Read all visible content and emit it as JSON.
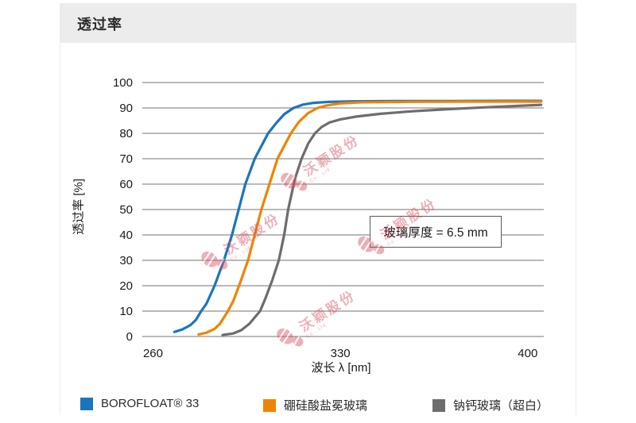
{
  "header": {
    "title": "透过率"
  },
  "chart_data": {
    "type": "line",
    "title": "透过率",
    "xlabel": "波长 λ [nm]",
    "ylabel": "透过率 [%]",
    "xlim": [
      256,
      406
    ],
    "xticks": [
      260,
      330,
      400
    ],
    "ylim": [
      0,
      100
    ],
    "yticks": [
      0,
      10,
      20,
      30,
      40,
      50,
      60,
      70,
      80,
      90,
      100
    ],
    "grid": "horizontal",
    "gridline_color": "#8f8f8f",
    "legend_position": "bottom",
    "annotation": "玻璃厚度 = 6.5 mm",
    "series": [
      {
        "name": "BOROFLOAT® 33",
        "color": "#1b75bc",
        "points": [
          [
            268,
            1.8
          ],
          [
            271,
            2.8
          ],
          [
            274,
            4.5
          ],
          [
            276,
            6.5
          ],
          [
            278,
            10
          ],
          [
            280,
            13
          ],
          [
            283,
            20
          ],
          [
            286.5,
            30
          ],
          [
            289.5,
            40
          ],
          [
            292,
            50
          ],
          [
            294.5,
            60
          ],
          [
            298,
            70
          ],
          [
            300.5,
            75
          ],
          [
            303,
            80
          ],
          [
            306,
            84
          ],
          [
            309,
            87.5
          ],
          [
            312.5,
            90
          ],
          [
            316,
            91.3
          ],
          [
            320,
            92
          ],
          [
            326,
            92.4
          ],
          [
            335,
            92.6
          ],
          [
            350,
            92.7
          ],
          [
            370,
            92.7
          ],
          [
            390,
            92.8
          ],
          [
            405,
            92.8
          ]
        ]
      },
      {
        "name": "硼硅酸盐冕玻璃",
        "color": "#f08300",
        "points": [
          [
            277,
            0.8
          ],
          [
            280,
            1.5
          ],
          [
            283,
            3
          ],
          [
            285,
            5
          ],
          [
            288,
            10
          ],
          [
            290,
            14
          ],
          [
            292.5,
            21
          ],
          [
            295.5,
            30
          ],
          [
            298,
            40
          ],
          [
            300.5,
            50
          ],
          [
            303.5,
            60
          ],
          [
            306.5,
            70
          ],
          [
            309,
            75
          ],
          [
            311.5,
            80
          ],
          [
            314.5,
            84.5
          ],
          [
            318,
            88
          ],
          [
            321.5,
            90
          ],
          [
            325,
            91
          ],
          [
            330,
            91.8
          ],
          [
            338,
            92.2
          ],
          [
            355,
            92.4
          ],
          [
            375,
            92.5
          ],
          [
            405,
            92.5
          ]
        ]
      },
      {
        "name": "钠钙玻璃（超白）",
        "color": "#6d6d6d",
        "points": [
          [
            286,
            0.6
          ],
          [
            290,
            1.2
          ],
          [
            293,
            2.5
          ],
          [
            296,
            5
          ],
          [
            298,
            7.5
          ],
          [
            300,
            10
          ],
          [
            302,
            15
          ],
          [
            304.5,
            22
          ],
          [
            307,
            30
          ],
          [
            309,
            40
          ],
          [
            310.5,
            50
          ],
          [
            313,
            62
          ],
          [
            315.5,
            70
          ],
          [
            318,
            76
          ],
          [
            320.5,
            80
          ],
          [
            323,
            82.5
          ],
          [
            326,
            84.3
          ],
          [
            330,
            85.5
          ],
          [
            336,
            86.6
          ],
          [
            345,
            87.7
          ],
          [
            357,
            88.7
          ],
          [
            370,
            89.5
          ],
          [
            385,
            90.3
          ],
          [
            405,
            91.2
          ]
        ]
      }
    ]
  },
  "annotation": {
    "label": "玻璃厚度 = 6.5 mm"
  },
  "watermark": {
    "text": "沃颖股份",
    "subtext": "Co., Ltd",
    "color": "#d94f62"
  }
}
